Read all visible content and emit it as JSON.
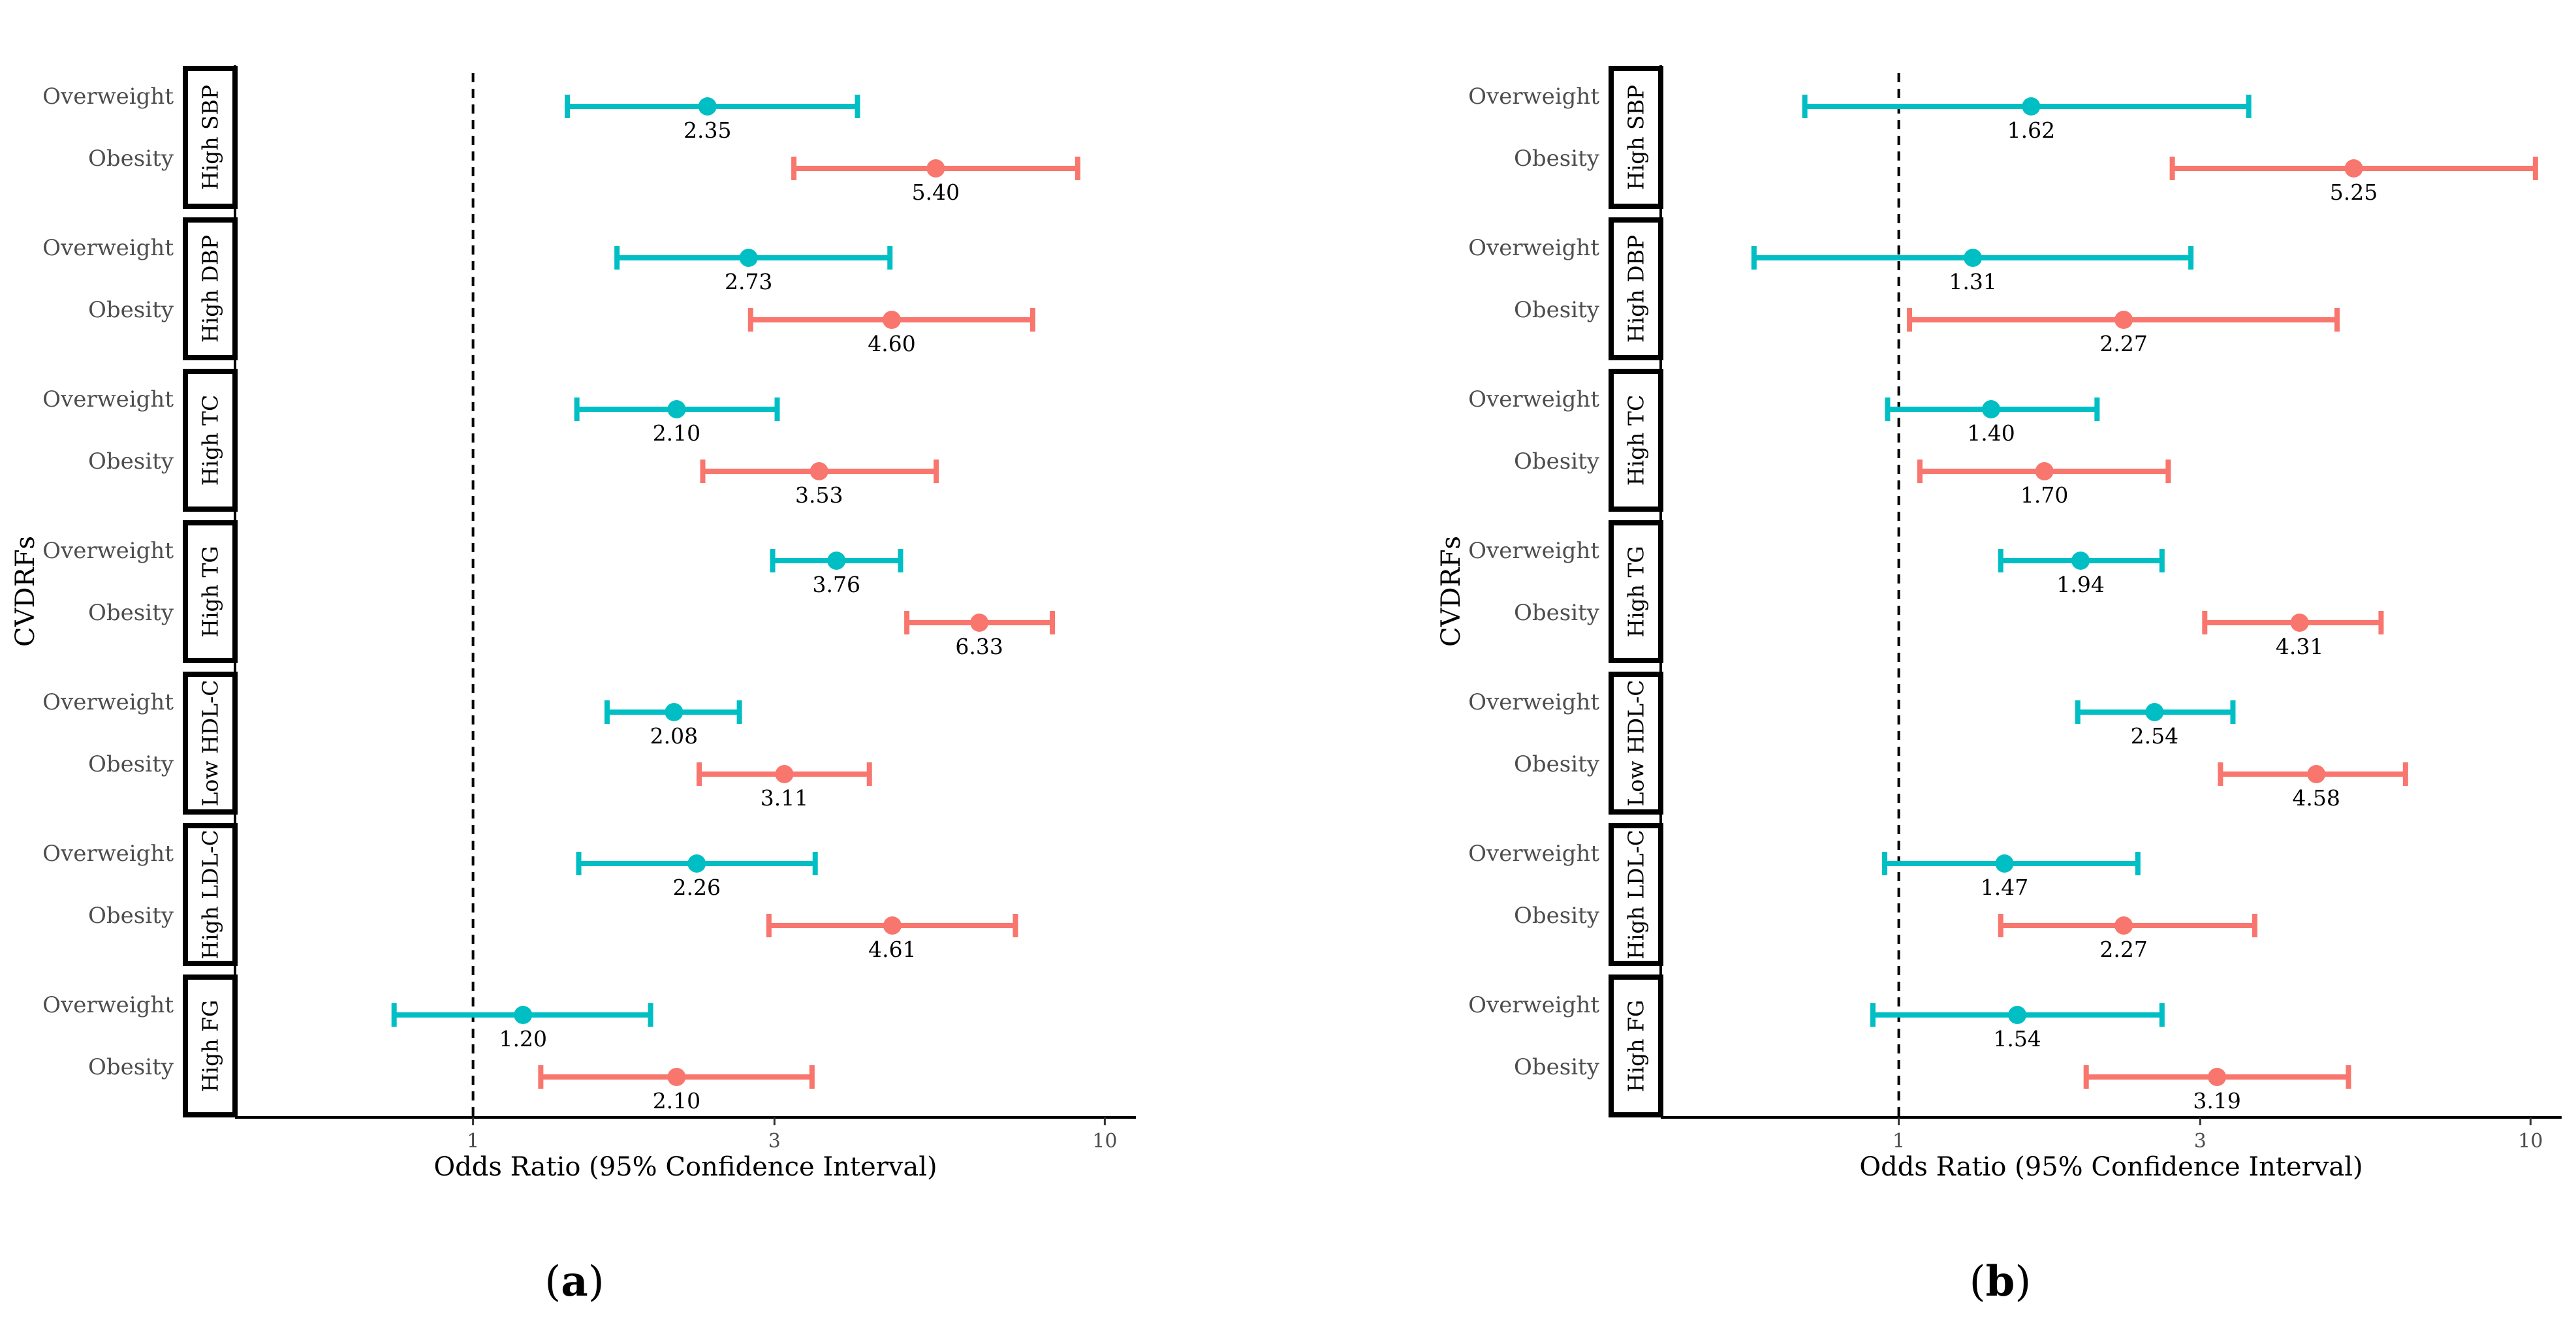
{
  "colors": {
    "overweight": "#00BFC4",
    "obesity": "#F8766D",
    "axis": "#000000"
  },
  "chart_data": [
    {
      "type": "forest",
      "panel_label": "(a)",
      "panel_letter": "a",
      "xlabel": "Odds Ratio (95% Confidence Interval)",
      "ylabel": "CVDRFs",
      "xscale": "log",
      "xlim": [
        0.42,
        11.2
      ],
      "xticks": [
        {
          "value": 1,
          "label": "1"
        },
        {
          "value": 3,
          "label": "3"
        },
        {
          "value": 10,
          "label": "10"
        }
      ],
      "reference_line": 1,
      "groups": [
        {
          "name": "High SBP",
          "rows": [
            {
              "label": "Overweight",
              "or": 2.35,
              "or_label": "2.35",
              "lo": 1.41,
              "hi": 4.06
            },
            {
              "label": "Obesity",
              "or": 5.4,
              "or_label": "5.40",
              "lo": 3.22,
              "hi": 9.06
            }
          ]
        },
        {
          "name": "High DBP",
          "rows": [
            {
              "label": "Overweight",
              "or": 2.73,
              "or_label": "2.73",
              "lo": 1.69,
              "hi": 4.57
            },
            {
              "label": "Obesity",
              "or": 4.6,
              "or_label": "4.60",
              "lo": 2.75,
              "hi": 7.69
            }
          ]
        },
        {
          "name": "High TC",
          "rows": [
            {
              "label": "Overweight",
              "or": 2.1,
              "or_label": "2.10",
              "lo": 1.46,
              "hi": 3.03
            },
            {
              "label": "Obesity",
              "or": 3.53,
              "or_label": "3.53",
              "lo": 2.31,
              "hi": 5.41
            }
          ]
        },
        {
          "name": "High TG",
          "rows": [
            {
              "label": "Overweight",
              "or": 3.76,
              "or_label": "3.76",
              "lo": 2.98,
              "hi": 4.75
            },
            {
              "label": "Obesity",
              "or": 6.33,
              "or_label": "6.33",
              "lo": 4.86,
              "hi": 8.26
            }
          ]
        },
        {
          "name": "Low HDL-C",
          "rows": [
            {
              "label": "Overweight",
              "or": 2.08,
              "or_label": "2.08",
              "lo": 1.63,
              "hi": 2.64
            },
            {
              "label": "Obesity",
              "or": 3.11,
              "or_label": "3.11",
              "lo": 2.28,
              "hi": 4.24
            }
          ]
        },
        {
          "name": "High LDL-C",
          "rows": [
            {
              "label": "Overweight",
              "or": 2.26,
              "or_label": "2.26",
              "lo": 1.47,
              "hi": 3.48
            },
            {
              "label": "Obesity",
              "or": 4.61,
              "or_label": "4.61",
              "lo": 2.94,
              "hi": 7.22
            }
          ]
        },
        {
          "name": "High FG",
          "rows": [
            {
              "label": "Overweight",
              "or": 1.2,
              "or_label": "1.20",
              "lo": 0.75,
              "hi": 1.91
            },
            {
              "label": "Obesity",
              "or": 2.1,
              "or_label": "2.10",
              "lo": 1.28,
              "hi": 3.44
            }
          ]
        }
      ]
    },
    {
      "type": "forest",
      "panel_label": "(b)",
      "panel_letter": "b",
      "xlabel": "Odds Ratio (95% Confidence Interval)",
      "ylabel": "CVDRFs",
      "xscale": "log",
      "xlim": [
        0.42,
        11.2
      ],
      "xticks": [
        {
          "value": 1,
          "label": "1"
        },
        {
          "value": 3,
          "label": "3"
        },
        {
          "value": 10,
          "label": "10"
        }
      ],
      "reference_line": 1,
      "groups": [
        {
          "name": "High SBP",
          "rows": [
            {
              "label": "Overweight",
              "or": 1.62,
              "or_label": "1.62",
              "lo": 0.71,
              "hi": 3.58
            },
            {
              "label": "Obesity",
              "or": 5.25,
              "or_label": "5.25",
              "lo": 2.71,
              "hi": 10.18
            }
          ]
        },
        {
          "name": "High DBP",
          "rows": [
            {
              "label": "Overweight",
              "or": 1.31,
              "or_label": "1.31",
              "lo": 0.59,
              "hi": 2.9
            },
            {
              "label": "Obesity",
              "or": 2.27,
              "or_label": "2.27",
              "lo": 1.04,
              "hi": 4.94
            }
          ]
        },
        {
          "name": "High TC",
          "rows": [
            {
              "label": "Overweight",
              "or": 1.4,
              "or_label": "1.40",
              "lo": 0.96,
              "hi": 2.06
            },
            {
              "label": "Obesity",
              "or": 1.7,
              "or_label": "1.70",
              "lo": 1.08,
              "hi": 2.67
            }
          ]
        },
        {
          "name": "High TG",
          "rows": [
            {
              "label": "Overweight",
              "or": 1.94,
              "or_label": "1.94",
              "lo": 1.45,
              "hi": 2.61
            },
            {
              "label": "Obesity",
              "or": 4.31,
              "or_label": "4.31",
              "lo": 3.05,
              "hi": 5.8
            }
          ]
        },
        {
          "name": "Low HDL-C",
          "rows": [
            {
              "label": "Overweight",
              "or": 2.54,
              "or_label": "2.54",
              "lo": 1.92,
              "hi": 3.38
            },
            {
              "label": "Obesity",
              "or": 4.58,
              "or_label": "4.58",
              "lo": 3.23,
              "hi": 6.34
            }
          ]
        },
        {
          "name": "High LDL-C",
          "rows": [
            {
              "label": "Overweight",
              "or": 1.47,
              "or_label": "1.47",
              "lo": 0.95,
              "hi": 2.39
            },
            {
              "label": "Obesity",
              "or": 2.27,
              "or_label": "2.27",
              "lo": 1.45,
              "hi": 3.66
            }
          ]
        },
        {
          "name": "High FG",
          "rows": [
            {
              "label": "Overweight",
              "or": 1.54,
              "or_label": "1.54",
              "lo": 0.91,
              "hi": 2.61
            },
            {
              "label": "Obesity",
              "or": 3.19,
              "or_label": "3.19",
              "lo": 1.98,
              "hi": 5.15
            }
          ]
        }
      ]
    }
  ]
}
